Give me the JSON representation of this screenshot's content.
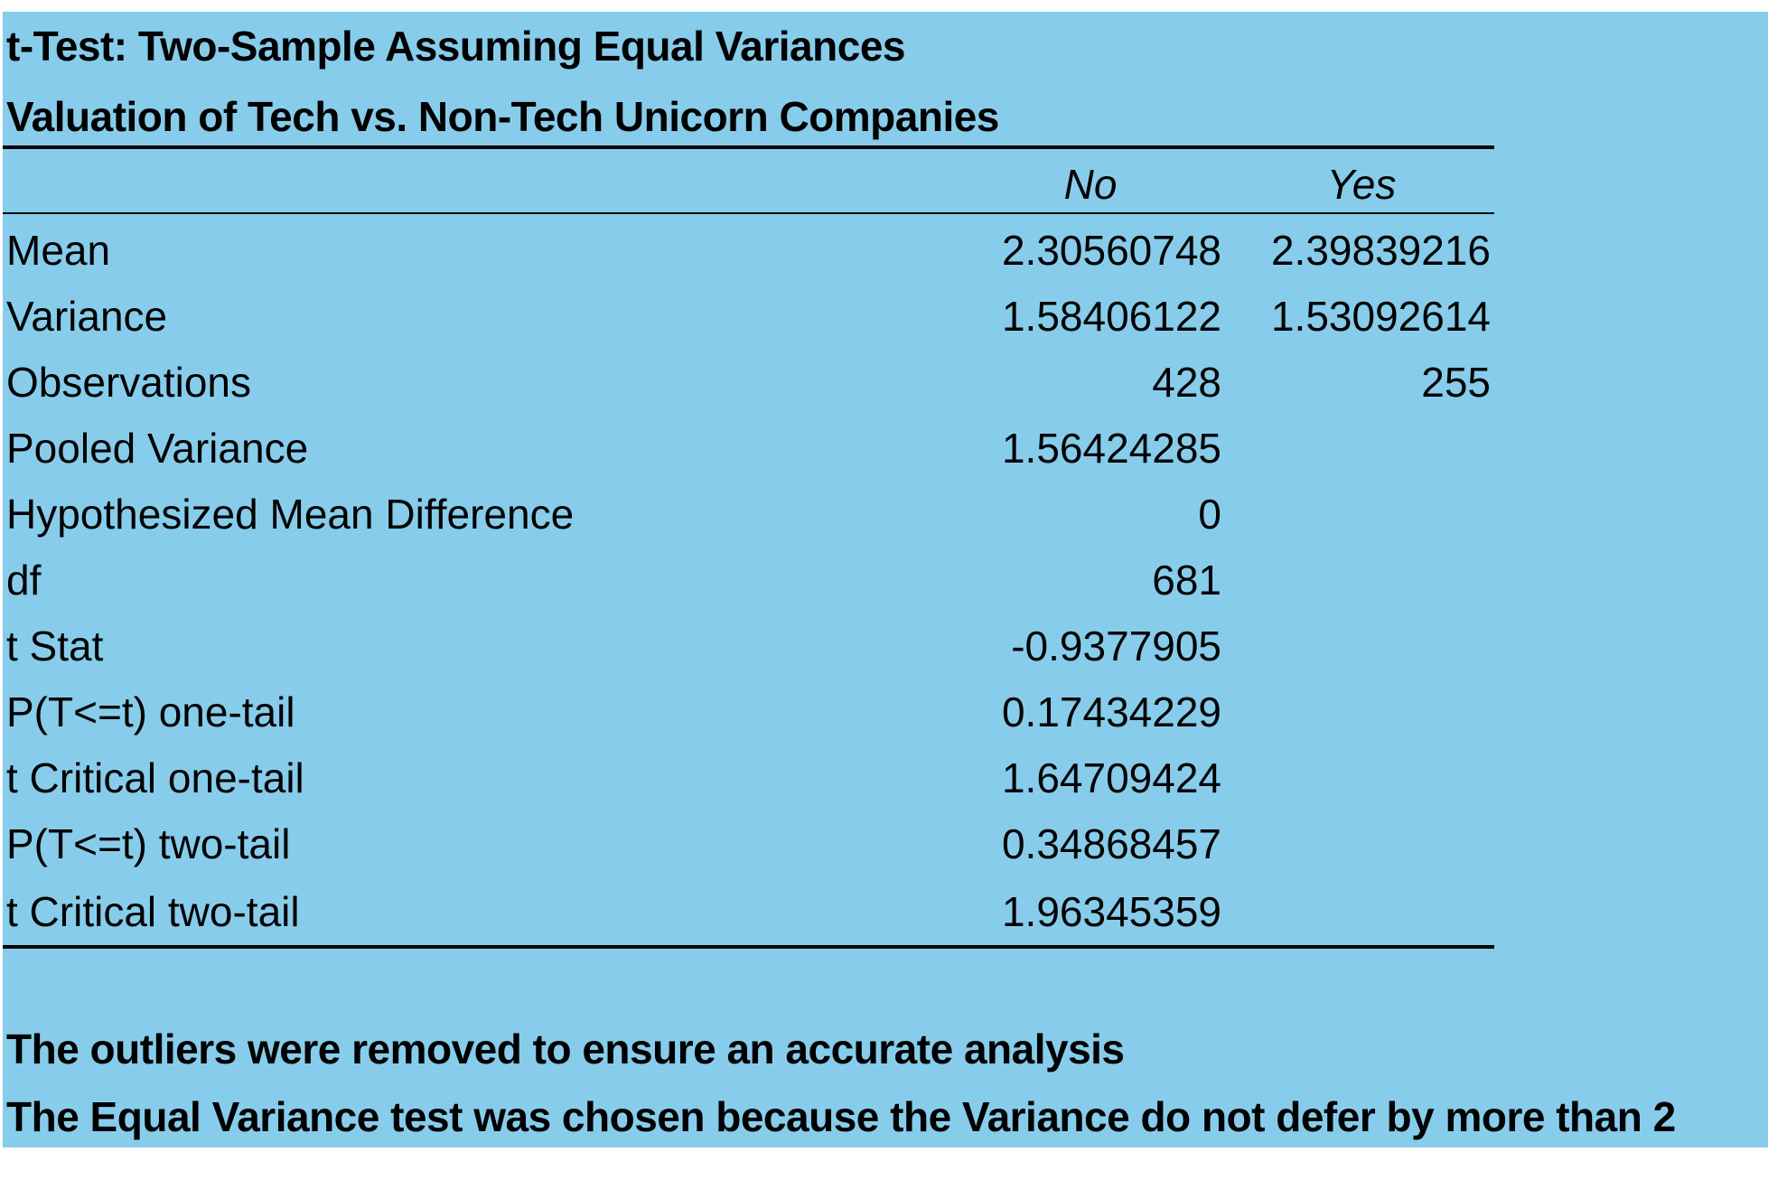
{
  "title": "t-Test: Two-Sample Assuming Equal Variances",
  "subtitle": "Valuation of Tech vs. Non-Tech Unicorn Companies",
  "columns": {
    "no": "No",
    "yes": "Yes"
  },
  "rows": [
    {
      "label": "Mean",
      "no": "2.30560748",
      "yes": "2.39839216"
    },
    {
      "label": "Variance",
      "no": "1.58406122",
      "yes": "1.53092614"
    },
    {
      "label": "Observations",
      "no": "428",
      "yes": "255"
    },
    {
      "label": "Pooled Variance",
      "no": "1.56424285",
      "yes": ""
    },
    {
      "label": "Hypothesized Mean Difference",
      "no": "0",
      "yes": ""
    },
    {
      "label": "df",
      "no": "681",
      "yes": ""
    },
    {
      "label": "t Stat",
      "no": "-0.9377905",
      "yes": ""
    },
    {
      "label": "P(T<=t) one-tail",
      "no": "0.17434229",
      "yes": ""
    },
    {
      "label": "t Critical one-tail",
      "no": "1.64709424",
      "yes": ""
    },
    {
      "label": "P(T<=t) two-tail",
      "no": "0.34868457",
      "yes": ""
    },
    {
      "label": "t Critical two-tail",
      "no": "1.96345359",
      "yes": ""
    }
  ],
  "notes": [
    "The outliers were removed to ensure an accurate analysis",
    "The Equal Variance test was chosen because the Variance do not defer by more than 2"
  ],
  "colors": {
    "background": "#87CDEB",
    "text": "#000000"
  }
}
